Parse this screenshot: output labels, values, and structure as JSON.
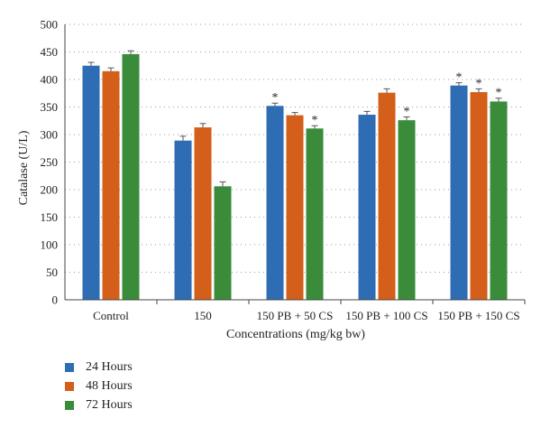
{
  "chart_data": {
    "type": "bar",
    "title": "",
    "xlabel": "Concentrations (mg/kg bw)",
    "ylabel": "Catalase (U/L)",
    "ylim": [
      0,
      500
    ],
    "yticks": [
      0,
      50,
      100,
      150,
      200,
      250,
      300,
      350,
      400,
      450,
      500
    ],
    "grid": "horizontal dotted",
    "legend_position": "bottom-left",
    "categories": [
      "Control",
      "150",
      "150 PB + 50 CS",
      "150 PB + 100 CS",
      "150 PB + 150 CS"
    ],
    "series": [
      {
        "name": "24 Hours",
        "color": "#2E6DB4",
        "values": [
          425,
          289,
          352,
          336,
          389
        ],
        "errors": [
          6,
          8,
          5,
          6,
          5
        ],
        "significant": [
          false,
          false,
          true,
          false,
          true
        ]
      },
      {
        "name": "48 Hours",
        "color": "#D35F1A",
        "values": [
          415,
          313,
          335,
          376,
          377
        ],
        "errors": [
          6,
          7,
          5,
          7,
          6
        ],
        "significant": [
          false,
          false,
          false,
          false,
          true
        ]
      },
      {
        "name": "72 Hours",
        "color": "#3A8C3A",
        "values": [
          446,
          206,
          311,
          326,
          360
        ],
        "errors": [
          6,
          8,
          5,
          6,
          6
        ],
        "significant": [
          false,
          false,
          true,
          true,
          true
        ]
      }
    ],
    "significance_marker": "*"
  }
}
